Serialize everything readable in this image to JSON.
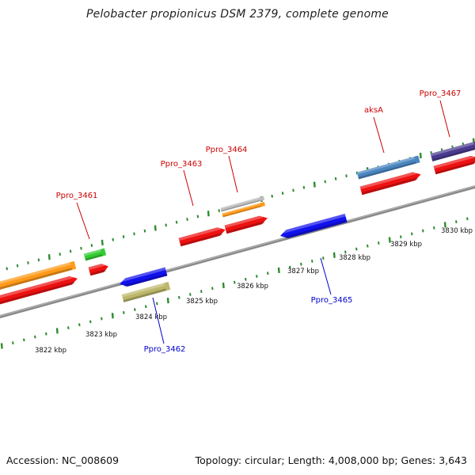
{
  "title": "Pelobacter propionicus DSM 2379, complete genome",
  "footer": {
    "accession": "Accession: NC_008609",
    "summary": "Topology: circular; Length: 4,008,000 bp; Genes: 3,643"
  },
  "colors": {
    "backbone": "#8a8a8a",
    "tick": "#2e8b2e",
    "label_forward": "#cc0000",
    "label_reverse": "#0000cc"
  },
  "scale_labels": [
    "3822 kbp",
    "3823 kbp",
    "3824 kbp",
    "3825 kbp",
    "3826 kbp",
    "3827 kbp",
    "3828 kbp",
    "3829 kbp",
    "3830 kbp"
  ],
  "gene_labels": {
    "forward": [
      "Ppro_3461",
      "Ppro_3463",
      "Ppro_3464",
      "aksA",
      "Ppro_3467"
    ],
    "reverse": [
      "Ppro_3462",
      "Ppro_3465"
    ]
  },
  "feature_colors": {
    "cds": "#ee1111",
    "gene_orange": "#ff9a1a",
    "gene_green": "#33cc33",
    "gene_blue": "#1111ee",
    "gene_khaki": "#bdb76b",
    "gene_steelblue": "#4a86c0",
    "gene_gray": "#bdbdbd",
    "gene_purple": "#4b3b8f"
  }
}
